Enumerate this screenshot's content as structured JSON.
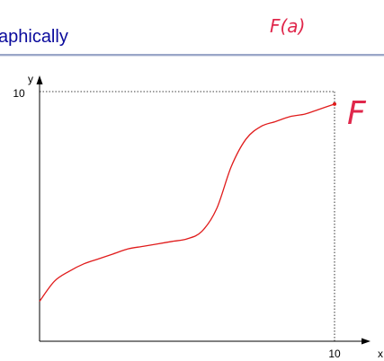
{
  "slide": {
    "title": "aphically",
    "annotations": {
      "top_note": "F(a)",
      "curve_label": "F"
    }
  },
  "colors": {
    "title": "#0a0a9c",
    "curve": "#e01b1b",
    "handwriting": "#e0274b",
    "axis": "#000000"
  },
  "chart_data": {
    "type": "line",
    "xlabel": "x",
    "ylabel": "y",
    "x_tick_labels": [
      "10"
    ],
    "y_tick_labels": [
      "10"
    ],
    "xlim": [
      0,
      10
    ],
    "ylim": [
      0,
      10
    ],
    "grid": false,
    "reference_lines": [
      {
        "orientation": "horizontal",
        "at": 10,
        "style": "dotted"
      },
      {
        "orientation": "vertical",
        "at": 10,
        "style": "dotted"
      }
    ],
    "series": [
      {
        "x": [
          0,
          0.5,
          1,
          1.5,
          2,
          2.5,
          3,
          3.5,
          4,
          4.5,
          5,
          5.5,
          6,
          6.5,
          7,
          7.5,
          8,
          8.5,
          9,
          9.5,
          10
        ],
        "y": [
          1.6,
          2.4,
          2.8,
          3.1,
          3.3,
          3.5,
          3.7,
          3.8,
          3.9,
          4.0,
          4.1,
          4.4,
          5.3,
          7.0,
          8.1,
          8.6,
          8.8,
          9.0,
          9.1,
          9.3,
          9.5
        ]
      }
    ],
    "marked_point": {
      "x": 10,
      "y": 9.5
    }
  }
}
